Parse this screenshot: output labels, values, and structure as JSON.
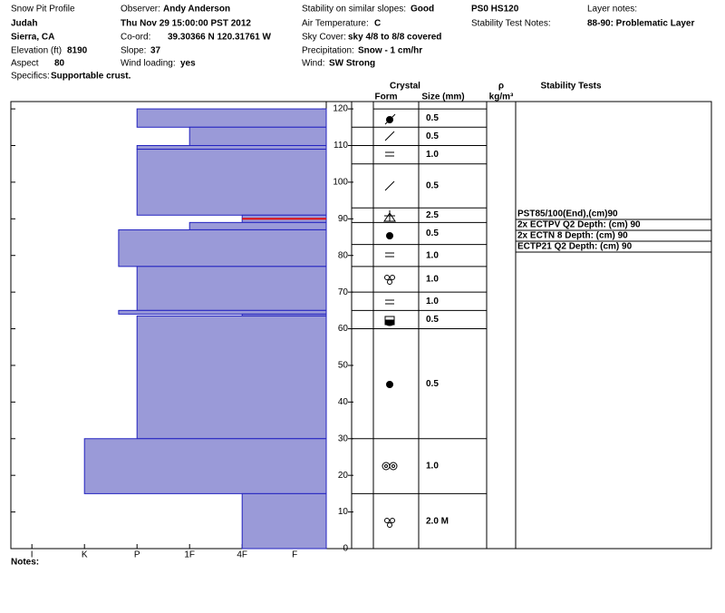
{
  "header": {
    "title": "Snow Pit Profile",
    "location": "Judah",
    "region": "Sierra, CA",
    "elevation_label": "Elevation (ft)",
    "elevation": "8190",
    "aspect_label": "Aspect",
    "aspect": "80",
    "specifics_label": "Specifics:",
    "specifics": "Supportable crust.",
    "observer_label": "Observer:",
    "observer": "Andy Anderson",
    "datetime": "Thu Nov 29 15:00:00 PST 2012",
    "coord_label": "Co-ord:",
    "coord": "39.30366 N 120.31761 W",
    "slope_label": "Slope:",
    "slope": "37",
    "wind_loading_label": "Wind loading:",
    "wind_loading": "yes",
    "stability_label": "Stability on similar slopes:",
    "stability": "Good",
    "air_temp_label": "Air Temperature:",
    "air_temp": "C",
    "sky_label": "Sky Cover:",
    "sky": "sky 4/8 to 8/8 covered",
    "precip_label": "Precipitation:",
    "precip": "Snow - 1 cm/hr",
    "wind_label": "Wind:",
    "wind": "SW Strong",
    "pit_id": "PS0 HS120",
    "stability_notes_label": "Stability Test Notes:",
    "layer_notes_label": "Layer notes:",
    "layer_notes": "88-90: Problematic Layer"
  },
  "chart_data": {
    "type": "hardness-profile",
    "ylim": [
      0,
      122
    ],
    "yticks": [
      0,
      10,
      20,
      30,
      40,
      50,
      60,
      70,
      80,
      90,
      100,
      110,
      120
    ],
    "xlim": [
      0.6,
      6.6
    ],
    "xticks": [
      {
        "value": 1,
        "label": "I"
      },
      {
        "value": 2,
        "label": "K"
      },
      {
        "value": 3,
        "label": "P"
      },
      {
        "value": 4,
        "label": "1F"
      },
      {
        "value": 5,
        "label": "4F"
      },
      {
        "value": 6,
        "label": "F"
      }
    ],
    "fill": "#9a9ad8",
    "edge": "#2323c0",
    "layers": [
      {
        "top": 120,
        "bottom": 115,
        "hardness": 3
      },
      {
        "top": 115,
        "bottom": 110,
        "hardness": 4
      },
      {
        "top": 110,
        "bottom": 109,
        "hardness": 3
      },
      {
        "top": 109,
        "bottom": 91,
        "hardness": 3
      },
      {
        "top": 91,
        "bottom": 89,
        "hardness": 5
      },
      {
        "top": 89,
        "bottom": 87,
        "hardness": 4
      },
      {
        "top": 87,
        "bottom": 77,
        "hardness": 2.65
      },
      {
        "top": 77,
        "bottom": 65,
        "hardness": 3
      },
      {
        "top": 65,
        "bottom": 64,
        "hardness": 2.65
      },
      {
        "top": 64,
        "bottom": 63.5,
        "hardness": 5
      },
      {
        "top": 63.5,
        "bottom": 30,
        "hardness": 3
      },
      {
        "top": 30,
        "bottom": 15,
        "hardness": 2
      },
      {
        "top": 15,
        "bottom": 0,
        "hardness": 5
      }
    ],
    "problem_layer": {
      "depth": 90,
      "hardness": 5,
      "color": "#e01010"
    }
  },
  "table": {
    "crystal": "Crystal",
    "form": "Form",
    "size": "Size (mm)",
    "density": "ρ",
    "density_unit": "kg/m³",
    "tests": "Stability Tests",
    "rows": [
      {
        "top": 120,
        "bottom": 115,
        "size": "0.5"
      },
      {
        "top": 115,
        "bottom": 110,
        "size": "0.5"
      },
      {
        "top": 110,
        "bottom": 105,
        "size": "1.0"
      },
      {
        "top": 105,
        "bottom": 93,
        "size": "0.5"
      },
      {
        "top": 93,
        "bottom": 89,
        "size": "2.5"
      },
      {
        "top": 89,
        "bottom": 83,
        "size": "0.5"
      },
      {
        "top": 83,
        "bottom": 77,
        "size": "1.0"
      },
      {
        "top": 77,
        "bottom": 70,
        "size": "1.0"
      },
      {
        "top": 70,
        "bottom": 65,
        "size": "1.0"
      },
      {
        "top": 65,
        "bottom": 60,
        "size": "0.5"
      },
      {
        "top": 60,
        "bottom": 30,
        "size": "0.5"
      },
      {
        "top": 30,
        "bottom": 15,
        "size": "1.0"
      },
      {
        "top": 15,
        "bottom": 0,
        "size": "2.0 M"
      }
    ],
    "stability_tests": [
      "PST85/100(End),(cm)90",
      "2x ECTPV Q2 Depth: (cm) 90",
      "2x ECTN 8  Depth: (cm) 90",
      "ECTP21 Q2 Depth: (cm) 90"
    ],
    "notes_label": "Notes:"
  }
}
